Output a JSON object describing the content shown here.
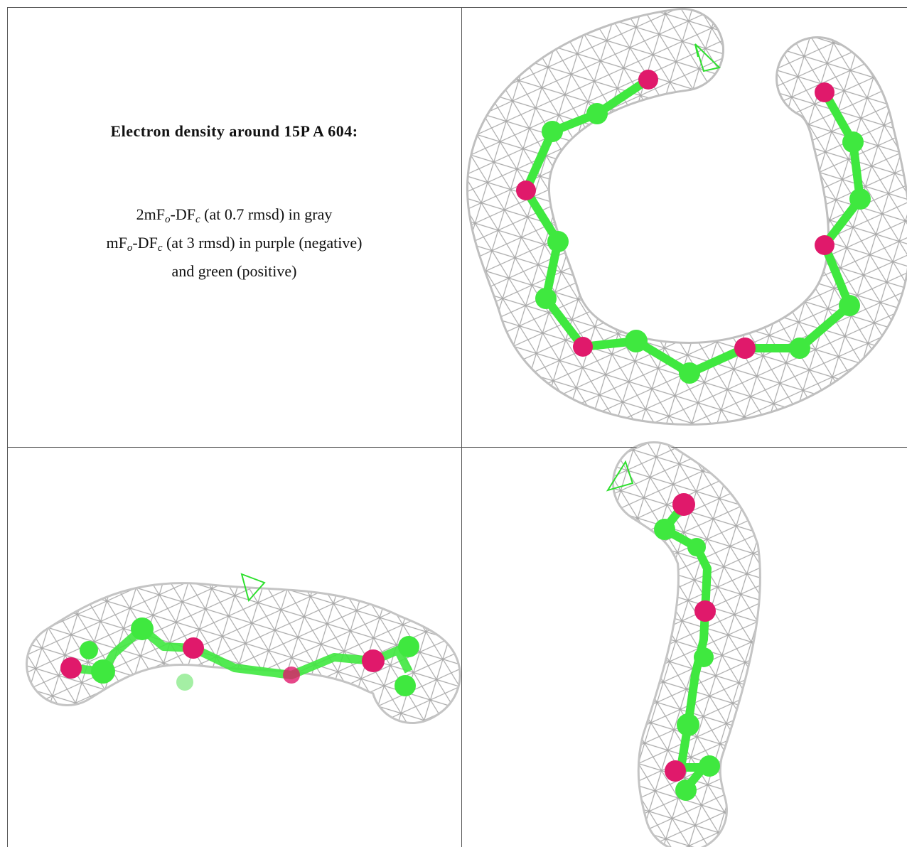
{
  "caption": {
    "title": "Electron density around 15P A 604:",
    "lines": [
      [
        "2mF",
        "o",
        "-DF",
        "c",
        " (at 0.7 rmsd) in gray"
      ],
      [
        "mF",
        "o",
        "-DF",
        "c",
        " (at 3 rmsd) in purple (negative)"
      ],
      [
        "and green (positive)"
      ]
    ]
  }
}
